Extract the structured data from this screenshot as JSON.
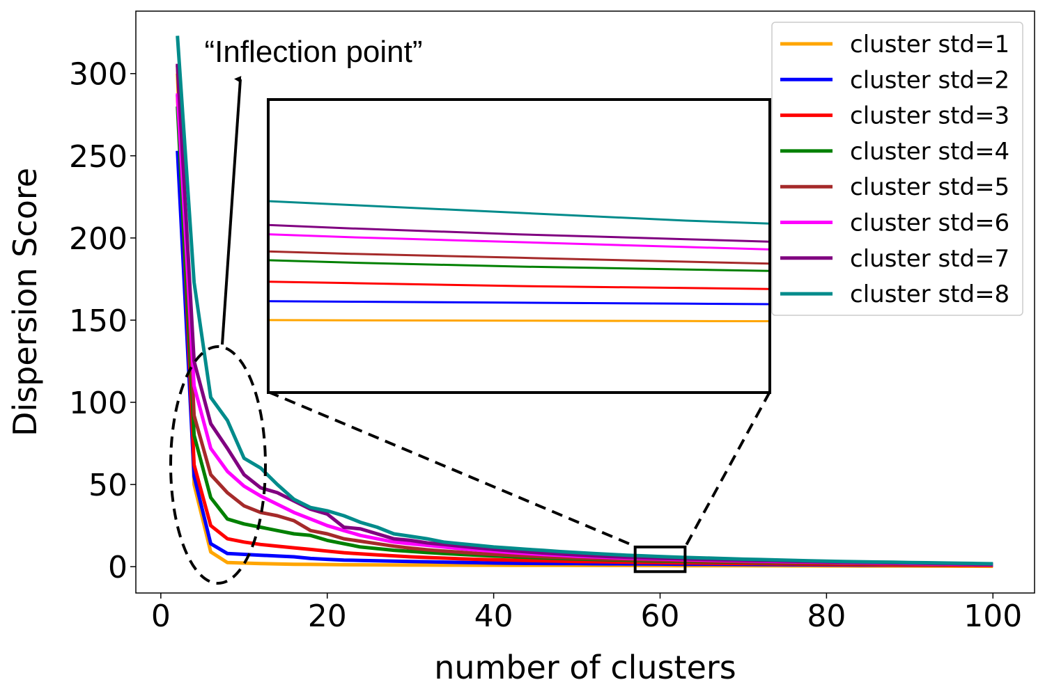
{
  "chart_data": {
    "type": "line",
    "xlabel": "number of clusters",
    "ylabel": "Dispersion Score",
    "xlim": [
      -3,
      105
    ],
    "ylim": [
      -16,
      338
    ],
    "xticks": [
      0,
      20,
      40,
      60,
      80,
      100
    ],
    "yticks": [
      0,
      50,
      100,
      150,
      200,
      250,
      300
    ],
    "legend_position": "top-right",
    "annotation": "“Inflection point”",
    "inset_x_range": [
      57,
      63
    ],
    "inset_y_range": [
      -3,
      12
    ],
    "x": [
      2,
      4,
      6,
      8,
      10,
      12,
      14,
      16,
      18,
      20,
      22,
      24,
      26,
      28,
      30,
      32,
      34,
      36,
      38,
      40,
      42,
      44,
      46,
      48,
      50,
      52,
      54,
      56,
      58,
      60,
      62,
      64,
      66,
      68,
      70,
      72,
      74,
      76,
      78,
      80,
      82,
      84,
      86,
      88,
      90,
      92,
      94,
      96,
      98,
      100
    ],
    "series": [
      {
        "name": "cluster std=1",
        "color": "#FFA500",
        "values": [
          300,
          50,
          9,
          2.5,
          2.2,
          1.9,
          1.7,
          1.5,
          1.4,
          1.3,
          1.2,
          1.15,
          1.1,
          1.05,
          1.0,
          0.98,
          0.95,
          0.92,
          0.9,
          0.88,
          0.86,
          0.84,
          0.82,
          0.8,
          0.78,
          0.76,
          0.74,
          0.72,
          0.7,
          0.68,
          0.66,
          0.64,
          0.62,
          0.6,
          0.58,
          0.56,
          0.54,
          0.52,
          0.5,
          0.48,
          0.46,
          0.44,
          0.42,
          0.4,
          0.38,
          0.36,
          0.34,
          0.32,
          0.3,
          0.28
        ]
      },
      {
        "name": "cluster std=2",
        "color": "#0000FF",
        "values": [
          253,
          55,
          14,
          8,
          7.5,
          7,
          6.5,
          6,
          5,
          4.5,
          4,
          3.8,
          3.6,
          3.4,
          3.2,
          3,
          2.8,
          2.6,
          2.4,
          2.2,
          2.1,
          2,
          1.95,
          1.9,
          1.85,
          1.8,
          1.75,
          1.7,
          1.65,
          1.6,
          1.55,
          1.5,
          1.45,
          1.4,
          1.35,
          1.3,
          1.25,
          1.2,
          1.15,
          1.1,
          1.05,
          1.0,
          0.98,
          0.96,
          0.94,
          0.92,
          0.9,
          0.88,
          0.86,
          0.84
        ]
      },
      {
        "name": "cluster std=3",
        "color": "#FF0000",
        "values": [
          287,
          62,
          25,
          17,
          15,
          13.5,
          12.5,
          11.5,
          10.5,
          9.5,
          8.5,
          7.8,
          7.2,
          6.6,
          6.0,
          5.6,
          5.2,
          4.8,
          4.5,
          4.2,
          4.0,
          3.8,
          3.6,
          3.4,
          3.2,
          3.05,
          2.9,
          2.75,
          2.6,
          2.45,
          2.35,
          2.25,
          2.15,
          2.05,
          1.95,
          1.85,
          1.75,
          1.65,
          1.55,
          1.45,
          1.38,
          1.31,
          1.24,
          1.17,
          1.1,
          1.03,
          0.96,
          0.9,
          0.85,
          0.8
        ]
      },
      {
        "name": "cluster std=4",
        "color": "#008000",
        "values": [
          280,
          80,
          42,
          29,
          26,
          24,
          22,
          20,
          19,
          16,
          14,
          12,
          11,
          10,
          9.3,
          8.6,
          8.0,
          7.5,
          7.0,
          6.5,
          6.1,
          5.7,
          5.35,
          5.0,
          4.7,
          4.4,
          4.15,
          3.9,
          3.65,
          3.45,
          3.3,
          3.15,
          3.0,
          2.85,
          2.7,
          2.55,
          2.4,
          2.3,
          2.2,
          2.1,
          2.0,
          1.9,
          1.8,
          1.7,
          1.6,
          1.5,
          1.4,
          1.3,
          1.2,
          1.1
        ]
      },
      {
        "name": "cluster std=5",
        "color": "#A52A2A",
        "values": [
          305,
          92,
          56,
          45,
          37,
          33,
          31,
          28,
          22,
          20,
          17,
          15.5,
          14,
          12.5,
          11.3,
          10.3,
          9.5,
          8.8,
          8.1,
          7.5,
          7.0,
          6.5,
          6.0,
          5.6,
          5.2,
          4.9,
          4.6,
          4.35,
          4.1,
          3.9,
          3.7,
          3.5,
          3.3,
          3.1,
          2.95,
          2.8,
          2.65,
          2.5,
          2.35,
          2.2,
          2.08,
          1.96,
          1.84,
          1.72,
          1.6,
          1.5,
          1.4,
          1.3,
          1.2,
          1.1
        ]
      },
      {
        "name": "cluster std=6",
        "color": "#FF00FF",
        "values": [
          288,
          110,
          72,
          58,
          49,
          43,
          38,
          33,
          29,
          25,
          22,
          19,
          17,
          15,
          14,
          13,
          12,
          11,
          10.2,
          9.4,
          8.7,
          8.0,
          7.4,
          6.9,
          6.4,
          6.0,
          5.6,
          5.25,
          4.95,
          4.7,
          4.45,
          4.2,
          4.0,
          3.8,
          3.6,
          3.4,
          3.2,
          3.0,
          2.85,
          2.7,
          2.55,
          2.4,
          2.25,
          2.1,
          1.95,
          1.8,
          1.65,
          1.5,
          1.4,
          1.3
        ]
      },
      {
        "name": "cluster std=7",
        "color": "#800080",
        "values": [
          306,
          125,
          87,
          72,
          56,
          48,
          45,
          40,
          35,
          32,
          24,
          23,
          20,
          17,
          16,
          14.5,
          13.5,
          12.5,
          11.5,
          10.5,
          9.7,
          9.0,
          8.3,
          7.7,
          7.1,
          6.6,
          6.15,
          5.75,
          5.4,
          5.1,
          4.85,
          4.6,
          4.35,
          4.1,
          3.9,
          3.7,
          3.5,
          3.3,
          3.1,
          2.95,
          2.8,
          2.65,
          2.5,
          2.35,
          2.2,
          2.05,
          1.9,
          1.75,
          1.6,
          1.5
        ]
      },
      {
        "name": "cluster std=8",
        "color": "#008B8B",
        "values": [
          323,
          173,
          103,
          89,
          66,
          60,
          50,
          41,
          36,
          34,
          31,
          27,
          24,
          20,
          18.5,
          17,
          15,
          14,
          13,
          12,
          11.3,
          10.6,
          9.9,
          9.2,
          8.6,
          8.0,
          7.5,
          7.0,
          6.6,
          6.2,
          5.8,
          5.5,
          5.2,
          4.9,
          4.6,
          4.35,
          4.1,
          3.85,
          3.6,
          3.4,
          3.2,
          3.0,
          2.85,
          2.7,
          2.55,
          2.4,
          2.25,
          2.1,
          1.95,
          1.8
        ]
      }
    ]
  }
}
